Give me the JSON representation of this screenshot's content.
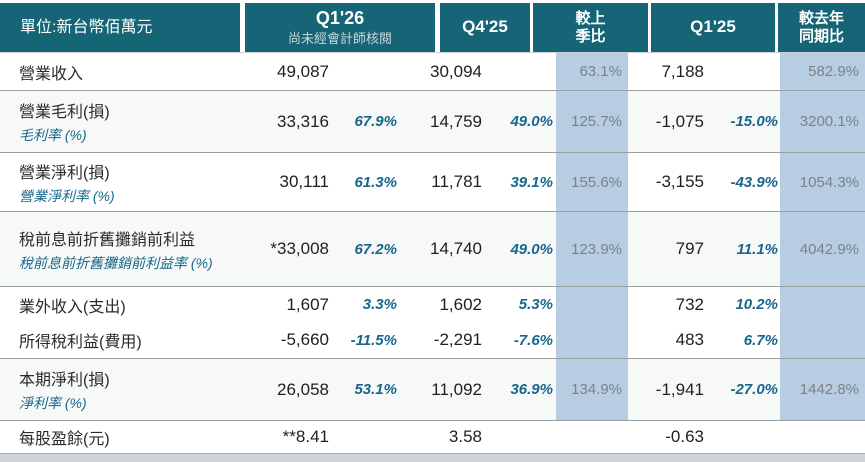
{
  "colors": {
    "teal": "#166577",
    "band": "#b7cde2",
    "accent": "#17678a",
    "graypct": "#7d8285",
    "sep": "#9aa0a2",
    "strip": "#cfd4d6"
  },
  "header": {
    "unit_label": "單位:新台幣佰萬元",
    "q126": {
      "label": "Q1'26",
      "sublabel": "尚未經會計師核閱"
    },
    "q425": {
      "label": "Q4'25"
    },
    "qoq": {
      "line1": "較上",
      "line2": "季比"
    },
    "q125": {
      "label": "Q1'25"
    },
    "yoy": {
      "line1": "較去年",
      "line2": "同期比"
    }
  },
  "rows": [
    {
      "label": "營業收入",
      "sublabel": "",
      "q126": "49,087",
      "q126_margin": "",
      "q425": "30,094",
      "q425_margin": "",
      "qoq": "63.1%",
      "q125": "7,188",
      "q125_margin": "",
      "yoy": "582.9%"
    },
    {
      "label": "營業毛利(損)",
      "sublabel": "毛利率 (%)",
      "q126": "33,316",
      "q126_margin": "67.9%",
      "q425": "14,759",
      "q425_margin": "49.0%",
      "qoq": "125.7%",
      "q125": "-1,075",
      "q125_margin": "-15.0%",
      "yoy": "3200.1%"
    },
    {
      "label": "營業淨利(損)",
      "sublabel": "營業淨利率 (%)",
      "q126": "30,111",
      "q126_margin": "61.3%",
      "q425": "11,781",
      "q425_margin": "39.1%",
      "qoq": "155.6%",
      "q125": "-3,155",
      "q125_margin": "-43.9%",
      "yoy": "1054.3%"
    },
    {
      "label": "稅前息前折舊攤銷前利益",
      "sublabel": "稅前息前折舊攤銷前利益率 (%)",
      "q126": "*33,008",
      "q126_margin": "67.2%",
      "q425": "14,740",
      "q425_margin": "49.0%",
      "qoq": "123.9%",
      "q125": "797",
      "q125_margin": "11.1%",
      "yoy": "4042.9%"
    },
    {
      "label": "業外收入(支出)",
      "sublabel": "",
      "q126": "1,607",
      "q126_margin": "3.3%",
      "q425": "1,602",
      "q425_margin": "5.3%",
      "qoq": "",
      "q125": "732",
      "q125_margin": "10.2%",
      "yoy": ""
    },
    {
      "label": "所得稅利益(費用)",
      "sublabel": "",
      "q126": "-5,660",
      "q126_margin": "-11.5%",
      "q425": "-2,291",
      "q425_margin": "-7.6%",
      "qoq": "",
      "q125": "483",
      "q125_margin": "6.7%",
      "yoy": ""
    },
    {
      "label": "本期淨利(損)",
      "sublabel": "淨利率 (%)",
      "q126": "26,058",
      "q126_margin": "53.1%",
      "q425": "11,092",
      "q425_margin": "36.9%",
      "qoq": "134.9%",
      "q125": "-1,941",
      "q125_margin": "-27.0%",
      "yoy": "1442.8%"
    },
    {
      "label": "每股盈餘(元)",
      "sublabel": "",
      "q126": "**8.41",
      "q126_margin": "",
      "q425": "3.58",
      "q425_margin": "",
      "qoq": "",
      "q125": "-0.63",
      "q125_margin": "",
      "yoy": ""
    }
  ]
}
